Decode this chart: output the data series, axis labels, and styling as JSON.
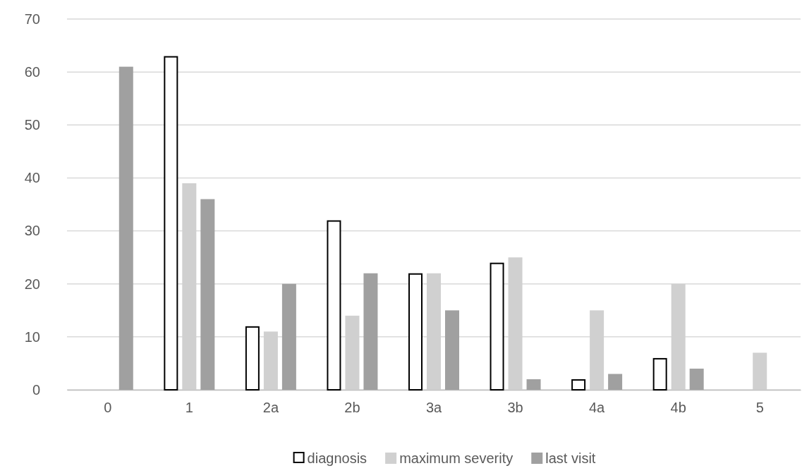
{
  "chart_data": {
    "type": "bar",
    "categories": [
      "0",
      "1",
      "2a",
      "2b",
      "3a",
      "3b",
      "4a",
      "4b",
      "5"
    ],
    "series": [
      {
        "name": "diagnosis",
        "color": "#ffffff",
        "values": [
          null,
          63,
          12,
          32,
          22,
          24,
          2,
          6,
          null
        ]
      },
      {
        "name": "maximum severity",
        "color": "#d0d0d0",
        "values": [
          null,
          39,
          11,
          14,
          22,
          25,
          15,
          20,
          7
        ]
      },
      {
        "name": "last visit",
        "color": "#a0a0a0",
        "values": [
          61,
          36,
          20,
          22,
          15,
          2,
          3,
          4,
          null
        ]
      }
    ],
    "ylim": [
      0,
      70
    ],
    "yticks": [
      0,
      10,
      20,
      30,
      40,
      50,
      60,
      70
    ],
    "grid": "y",
    "legend": "bottom"
  }
}
